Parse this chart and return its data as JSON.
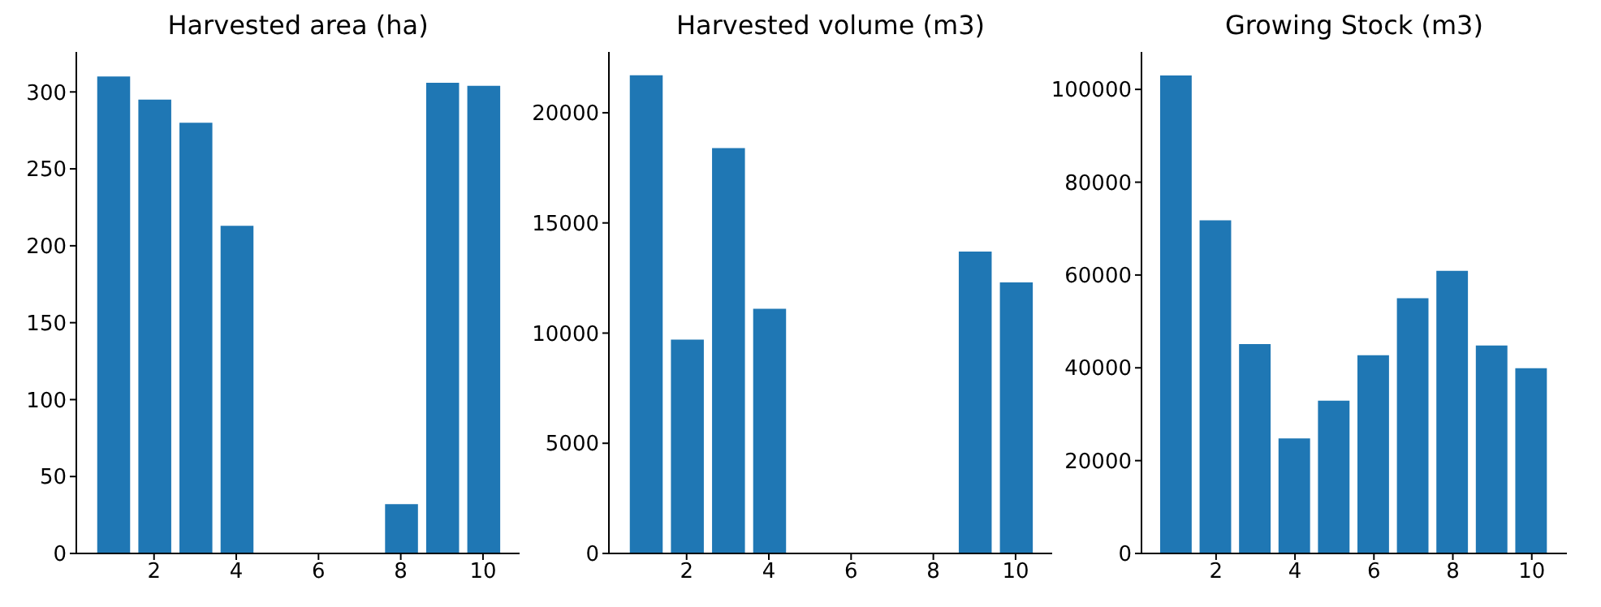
{
  "chart_data": [
    {
      "type": "bar",
      "title": "Harvested area (ha)",
      "x": [
        1,
        2,
        3,
        4,
        5,
        6,
        7,
        8,
        9,
        10
      ],
      "values": [
        310,
        295,
        280,
        213,
        0,
        0,
        0,
        32,
        306,
        304
      ],
      "color": "#1f77b4",
      "xlim": [
        0.11,
        10.89
      ],
      "xticks": [
        2,
        4,
        6,
        8,
        10
      ],
      "ylim": [
        0,
        326
      ],
      "yticks": [
        0,
        50,
        100,
        150,
        200,
        250,
        300
      ],
      "grid": false
    },
    {
      "type": "bar",
      "title": "Harvested volume (m3)",
      "x": [
        1,
        2,
        3,
        4,
        5,
        6,
        7,
        8,
        9,
        10
      ],
      "values": [
        21700,
        9700,
        18400,
        11100,
        0,
        0,
        0,
        0,
        13700,
        12300
      ],
      "color": "#1f77b4",
      "xlim": [
        0.11,
        10.89
      ],
      "xticks": [
        2,
        4,
        6,
        8,
        10
      ],
      "ylim": [
        0,
        22760
      ],
      "yticks": [
        0,
        5000,
        10000,
        15000,
        20000
      ],
      "grid": false
    },
    {
      "type": "bar",
      "title": "Growing Stock (m3)",
      "x": [
        1,
        2,
        3,
        4,
        5,
        6,
        7,
        8,
        9,
        10
      ],
      "values": [
        103000,
        71800,
        45100,
        24800,
        32900,
        42700,
        55000,
        60900,
        44800,
        39900
      ],
      "color": "#1f77b4",
      "xlim": [
        0.11,
        10.89
      ],
      "xticks": [
        2,
        4,
        6,
        8,
        10
      ],
      "ylim": [
        0,
        108070
      ],
      "yticks": [
        0,
        20000,
        40000,
        60000,
        80000,
        100000
      ],
      "grid": false
    }
  ]
}
